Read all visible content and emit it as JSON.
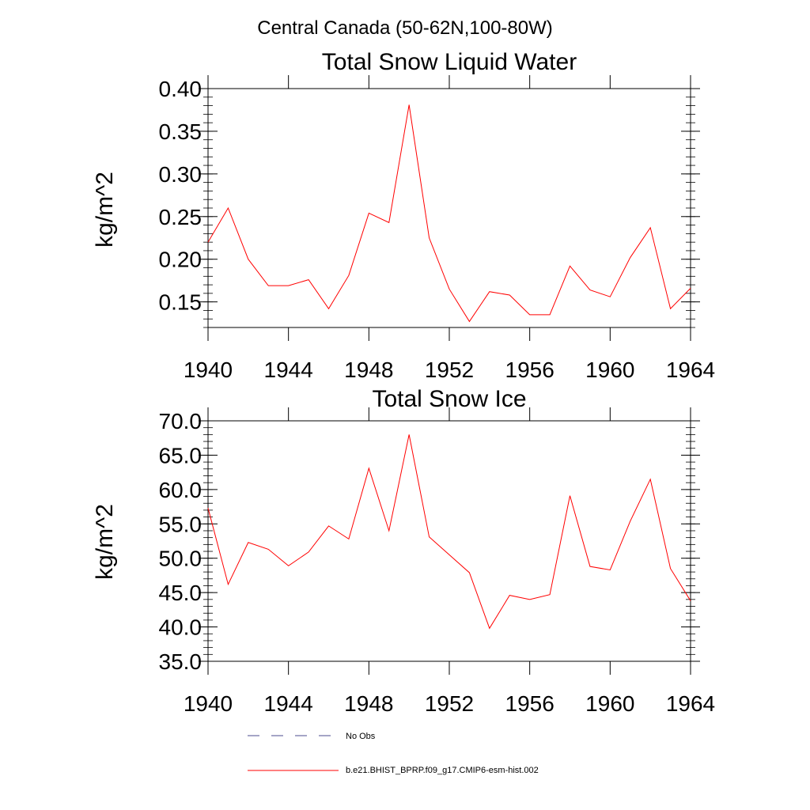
{
  "figure_title": "Central Canada (50-62N,100-80W)",
  "colors": {
    "model": "#ff0000",
    "obs": "#4b4b8f",
    "axis": "#000000"
  },
  "legend": {
    "entries": [
      {
        "label": "No Obs",
        "style": "dashed",
        "color": "#4b4b8f"
      },
      {
        "label": "b.e21.BHIST_BPRP.f09_g17.CMIP6-esm-hist.002",
        "style": "solid",
        "color": "#ff0000"
      }
    ]
  },
  "chart_data": [
    {
      "type": "line",
      "title": "Total Snow Liquid Water",
      "xlabel": "",
      "ylabel": "kg/m^2",
      "xlim": [
        1940,
        1964
      ],
      "ylim": [
        0.12,
        0.4
      ],
      "xticks": [
        1940,
        1944,
        1948,
        1952,
        1956,
        1960,
        1964
      ],
      "yticks": [
        0.15,
        0.2,
        0.25,
        0.3,
        0.35,
        0.4
      ],
      "yticklabels": [
        "0.15",
        "0.20",
        "0.25",
        "0.30",
        "0.35",
        "0.40"
      ],
      "y_minor_step": 0.01,
      "grid": false,
      "x": [
        1940,
        1941,
        1942,
        1943,
        1944,
        1945,
        1946,
        1947,
        1948,
        1949,
        1950,
        1951,
        1952,
        1953,
        1954,
        1955,
        1956,
        1957,
        1958,
        1959,
        1960,
        1961,
        1962,
        1963,
        1964
      ],
      "series": [
        {
          "name": "b.e21.BHIST_BPRP.f09_g17.CMIP6-esm-hist.002",
          "values": [
            0.22,
            0.26,
            0.2,
            0.169,
            0.169,
            0.176,
            0.142,
            0.181,
            0.254,
            0.243,
            0.381,
            0.225,
            0.165,
            0.127,
            0.162,
            0.158,
            0.135,
            0.135,
            0.192,
            0.164,
            0.156,
            0.202,
            0.237,
            0.142,
            0.166
          ]
        }
      ]
    },
    {
      "type": "line",
      "title": "Total Snow Ice",
      "xlabel": "",
      "ylabel": "kg/m^2",
      "xlim": [
        1940,
        1964
      ],
      "ylim": [
        35.0,
        70.0
      ],
      "xticks": [
        1940,
        1944,
        1948,
        1952,
        1956,
        1960,
        1964
      ],
      "yticks": [
        35.0,
        40.0,
        45.0,
        50.0,
        55.0,
        60.0,
        65.0,
        70.0
      ],
      "yticklabels": [
        "35.0",
        "40.0",
        "45.0",
        "50.0",
        "55.0",
        "60.0",
        "65.0",
        "70.0"
      ],
      "y_minor_step": 1.0,
      "grid": false,
      "x": [
        1940,
        1941,
        1942,
        1943,
        1944,
        1945,
        1946,
        1947,
        1948,
        1949,
        1950,
        1951,
        1952,
        1953,
        1954,
        1955,
        1956,
        1957,
        1958,
        1959,
        1960,
        1961,
        1962,
        1963,
        1964
      ],
      "series": [
        {
          "name": "b.e21.BHIST_BPRP.f09_g17.CMIP6-esm-hist.002",
          "values": [
            57.3,
            46.2,
            52.3,
            51.3,
            48.9,
            50.9,
            54.7,
            52.8,
            63.1,
            54.0,
            68.0,
            53.1,
            50.5,
            47.9,
            39.8,
            44.6,
            44.0,
            44.7,
            59.1,
            48.8,
            48.3,
            55.4,
            61.5,
            48.5,
            43.8
          ]
        }
      ]
    }
  ]
}
